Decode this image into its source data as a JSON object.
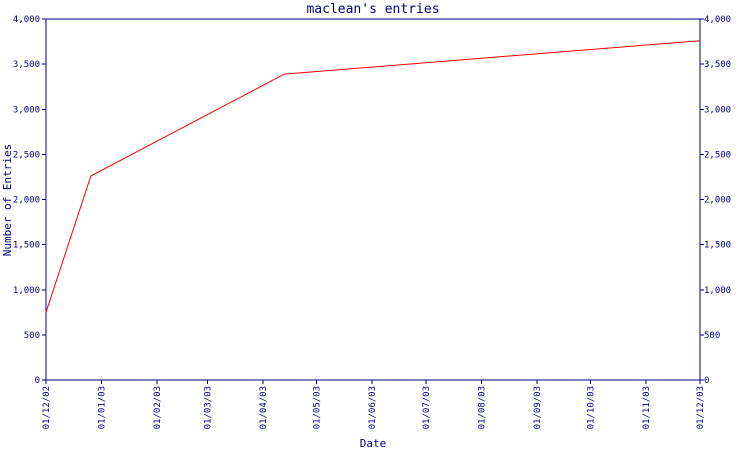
{
  "chart_data": {
    "type": "line",
    "title": "maclean's entries",
    "xlabel": "Date",
    "ylabel": "Number of Entries",
    "ylim": [
      0,
      4000
    ],
    "y_ticks": [
      0,
      500,
      1000,
      1500,
      2000,
      2500,
      3000,
      3500,
      4000
    ],
    "y_tick_labels": [
      "0",
      "500",
      "1,000",
      "1,500",
      "2,000",
      "2,500",
      "3,000",
      "3,500",
      "4,000"
    ],
    "x_ticks": [
      "01/12/02",
      "01/01/03",
      "01/02/03",
      "01/03/03",
      "01/04/03",
      "01/05/03",
      "01/06/03",
      "01/07/03",
      "01/08/03",
      "01/09/03",
      "01/10/03",
      "01/11/03",
      "01/12/03"
    ],
    "xlim": [
      "2002-12-01",
      "2003-12-01"
    ],
    "grid": false,
    "series": [
      {
        "color": "#ff0000",
        "points": [
          {
            "x": "2002-12-01",
            "y": 750
          },
          {
            "x": "2002-12-26",
            "y": 2260
          },
          {
            "x": "2003-04-13",
            "y": 3390
          },
          {
            "x": "2003-12-01",
            "y": 3760
          }
        ]
      }
    ]
  }
}
